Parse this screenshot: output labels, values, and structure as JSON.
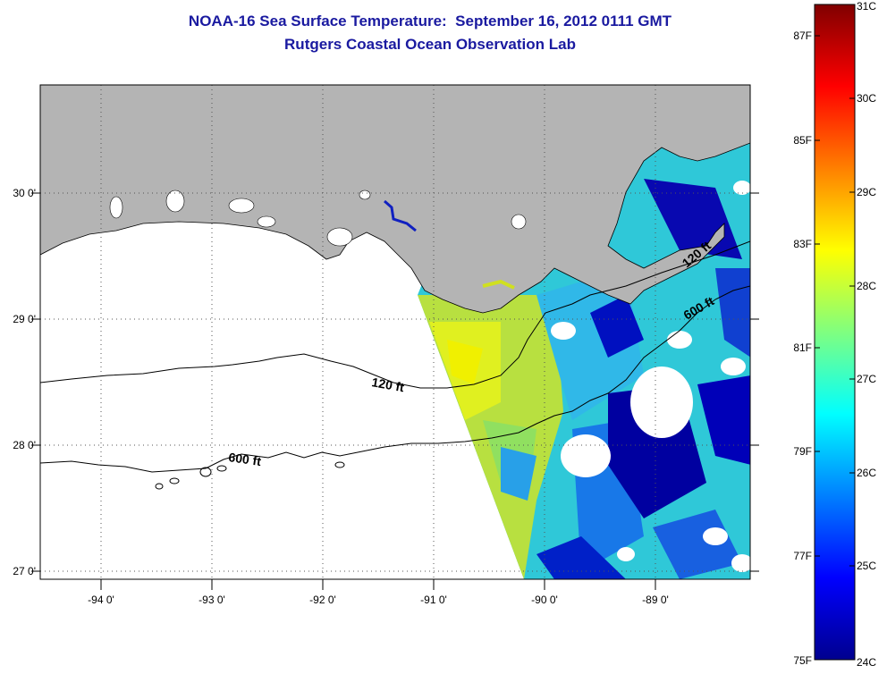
{
  "title_line1": "NOAA-16 Sea Surface Temperature:  September 16, 2012 0111 GMT",
  "title_line2": "Rutgers Coastal Ocean Observation Lab",
  "lat_ticks": [
    "30 0'",
    "29 0'",
    "28 0'",
    "27 0'"
  ],
  "lon_ticks": [
    "-94 0'",
    "-93 0'",
    "-92 0'",
    "-91 0'",
    "-90 0'",
    "-89 0'"
  ],
  "contour_labels": {
    "west_120": "120 ft",
    "west_600": "600 ft",
    "east_120": "120 ft",
    "east_600": "600 ft"
  },
  "colorbar": {
    "fahrenheit_labels": [
      "87F",
      "85F",
      "83F",
      "81F",
      "79F",
      "77F",
      "75F"
    ],
    "celsius_labels": [
      "31C",
      "30C",
      "29C",
      "28C",
      "27C",
      "26C",
      "25C",
      "24C"
    ],
    "min_c": 24,
    "max_c": 31
  },
  "colors": {
    "land": "#b4b4b4",
    "title": "#1a1aa0",
    "cloud": "#ffffff"
  }
}
